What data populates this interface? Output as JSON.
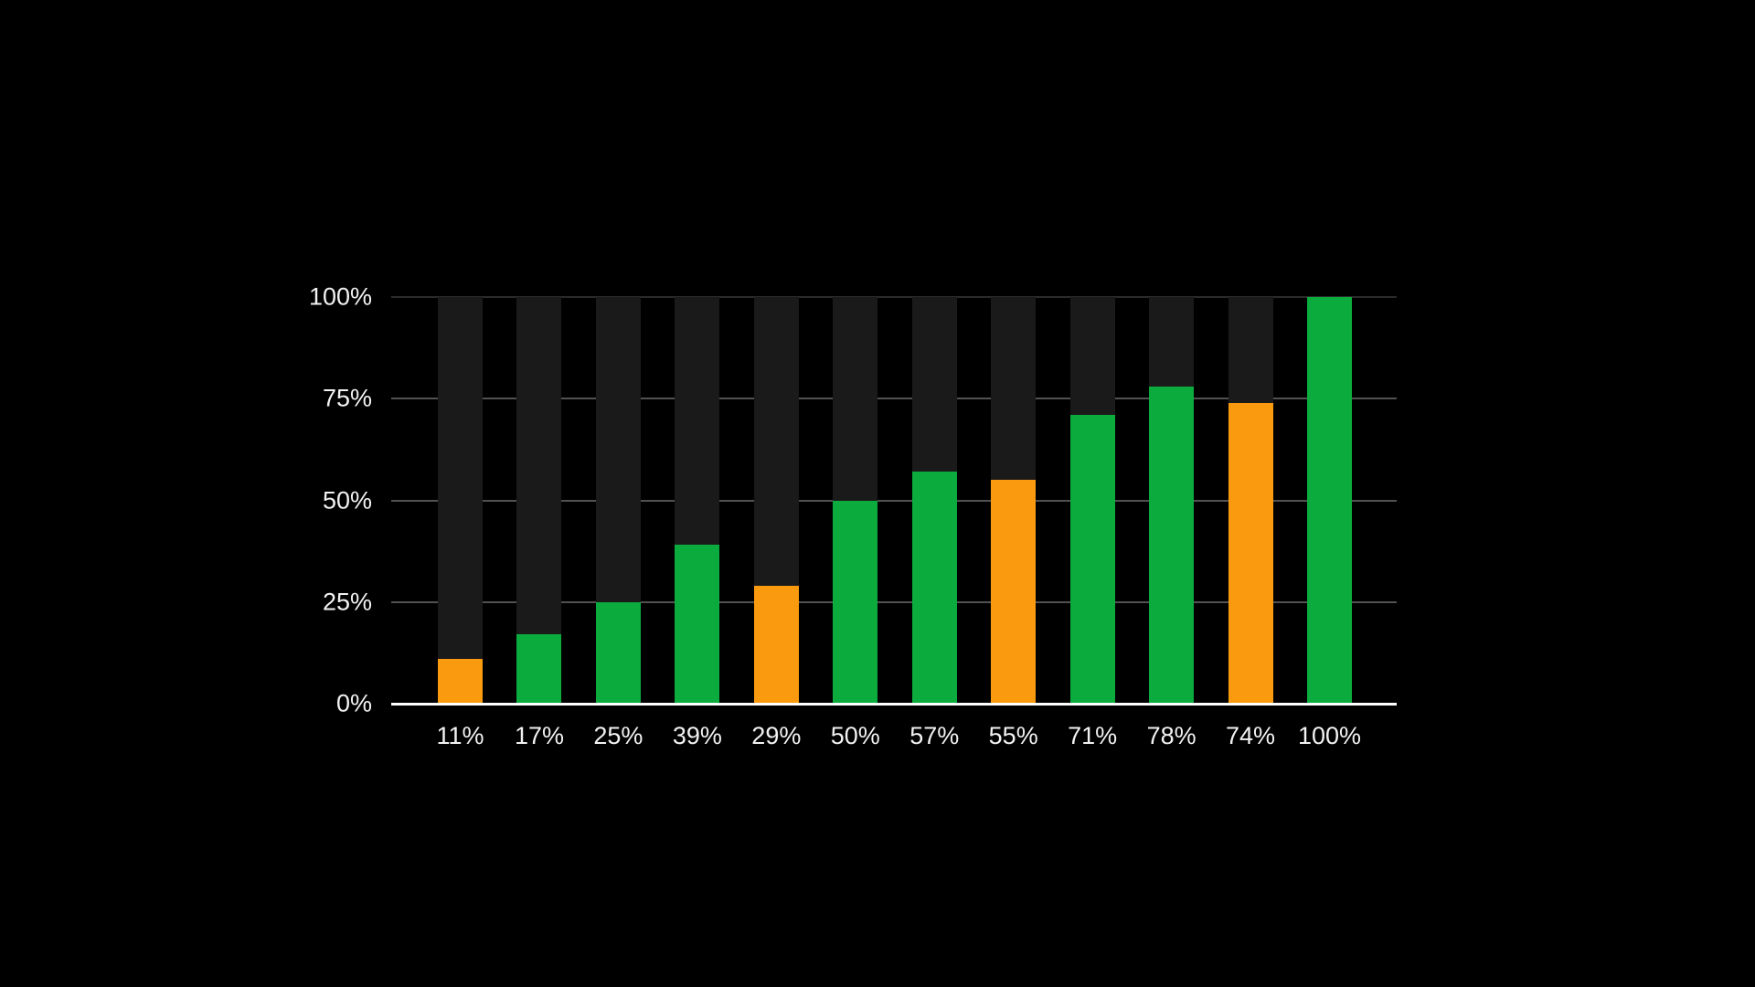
{
  "chart_data": {
    "type": "bar",
    "categories": [
      "11%",
      "17%",
      "25%",
      "39%",
      "29%",
      "50%",
      "57%",
      "55%",
      "71%",
      "78%",
      "74%",
      "100%"
    ],
    "values": [
      11,
      17,
      25,
      39,
      29,
      50,
      57,
      55,
      71,
      78,
      74,
      100
    ],
    "bar_colors": [
      "#FA9A0E",
      "#0BAC3D",
      "#0BAC3D",
      "#0BAC3D",
      "#FA9A0E",
      "#0BAC3D",
      "#0BAC3D",
      "#FA9A0E",
      "#0BAC3D",
      "#0BAC3D",
      "#FA9A0E",
      "#0BAC3D"
    ],
    "title": "",
    "xlabel": "",
    "ylabel": "",
    "ylim": [
      0,
      100
    ],
    "y_axis": {
      "tick_labels": [
        "0%",
        "25%",
        "50%",
        "75%",
        "100%"
      ],
      "tick_values": [
        0,
        25,
        50,
        75,
        100
      ]
    },
    "grid": "horizontal",
    "legend": "none",
    "colors": {
      "green": "#0BAC3D",
      "orange": "#FA9A0E",
      "track_column": "#1A1A1A",
      "background": "#000000",
      "baseline": "#FFFFFF",
      "gridline": "#525252",
      "text": "#F2F2F2"
    }
  }
}
